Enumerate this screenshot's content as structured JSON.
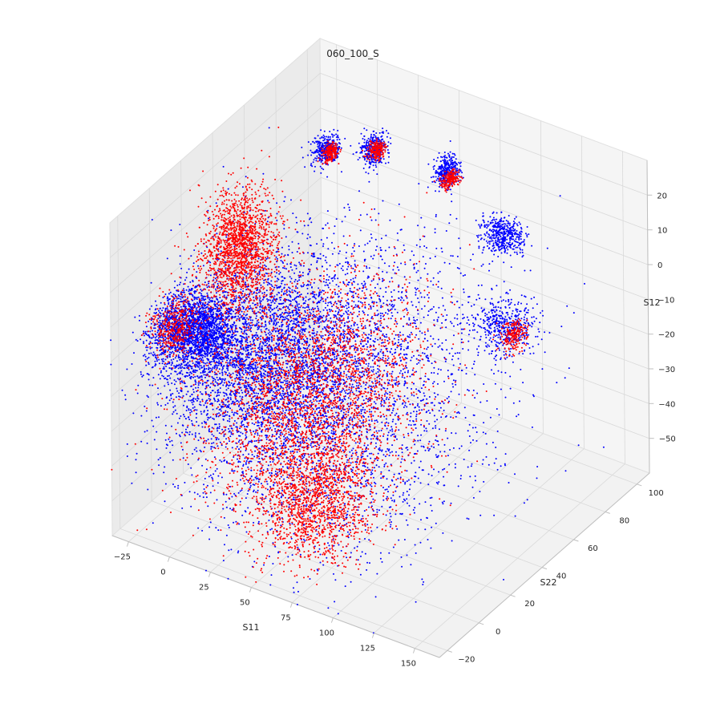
{
  "chart_data": {
    "type": "scatter",
    "projection": "3d",
    "title": "060_100_S",
    "xlabel": "S11",
    "ylabel": "S22",
    "zlabel": "S12",
    "xlim": [
      -35,
      165
    ],
    "ylim": [
      -25,
      108
    ],
    "zlim": [
      -60,
      30
    ],
    "x_ticks": [
      "−25",
      "0",
      "25",
      "50",
      "75",
      "100",
      "125",
      "150"
    ],
    "x_tick_values": [
      -25,
      0,
      25,
      50,
      75,
      100,
      125,
      150
    ],
    "y_ticks": [
      "−20",
      "0",
      "20",
      "40",
      "60",
      "80",
      "100"
    ],
    "y_tick_values": [
      -20,
      0,
      20,
      40,
      60,
      80,
      100
    ],
    "z_ticks": [
      "−50",
      "−40",
      "−30",
      "−20",
      "−10",
      "0",
      "10",
      "20"
    ],
    "z_tick_values": [
      -50,
      -40,
      -30,
      -20,
      -10,
      0,
      10,
      20
    ],
    "grid": true,
    "legend": "none",
    "point_size": 1,
    "series": [
      {
        "color": "#0000ff",
        "clusters": [
          {
            "center": [
              -18,
              10,
              -12
            ],
            "spread": [
              12,
              8,
              4
            ],
            "points": 2200
          },
          {
            "center": [
              10,
              25,
              -20
            ],
            "spread": [
              25,
              20,
              12
            ],
            "points": 3200
          },
          {
            "center": [
              45,
              40,
              -25
            ],
            "spread": [
              35,
              30,
              15
            ],
            "points": 2600
          },
          {
            "center": [
              5,
              70,
              20
            ],
            "spread": [
              3,
              3,
              2
            ],
            "points": 350
          },
          {
            "center": [
              20,
              85,
              17
            ],
            "spread": [
              3,
              3,
              2
            ],
            "points": 350
          },
          {
            "center": [
              50,
              100,
              10
            ],
            "spread": [
              3,
              3,
              2
            ],
            "points": 350
          },
          {
            "center": [
              80,
              105,
              -5
            ],
            "spread": [
              6,
              4,
              2
            ],
            "points": 450
          },
          {
            "center": [
              100,
              85,
              -20
            ],
            "spread": [
              8,
              5,
              3
            ],
            "points": 450
          },
          {
            "center": [
              60,
              20,
              -45
            ],
            "spread": [
              35,
              25,
              10
            ],
            "points": 700
          }
        ]
      },
      {
        "color": "#ff0000",
        "clusters": [
          {
            "center": [
              -10,
              30,
              5
            ],
            "spread": [
              8,
              8,
              8
            ],
            "points": 1700
          },
          {
            "center": [
              -25,
              5,
              -10
            ],
            "spread": [
              5,
              6,
              4
            ],
            "points": 400
          },
          {
            "center": [
              30,
              35,
              -30
            ],
            "spread": [
              25,
              25,
              12
            ],
            "points": 2800
          },
          {
            "center": [
              60,
              5,
              -45
            ],
            "spread": [
              15,
              12,
              8
            ],
            "points": 1500
          },
          {
            "center": [
              8,
              70,
              20
            ],
            "spread": [
              2,
              2,
              1
            ],
            "points": 200
          },
          {
            "center": [
              22,
              85,
              17
            ],
            "spread": [
              2,
              2,
              1
            ],
            "points": 200
          },
          {
            "center": [
              52,
              100,
              8
            ],
            "spread": [
              2,
              2,
              1
            ],
            "points": 200
          },
          {
            "center": [
              105,
              85,
              -22
            ],
            "spread": [
              3,
              3,
              2
            ],
            "points": 200
          }
        ]
      }
    ]
  }
}
